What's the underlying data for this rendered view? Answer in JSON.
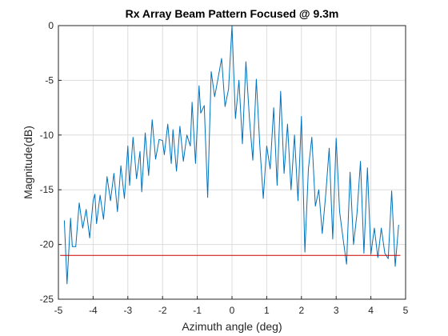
{
  "chart_data": {
    "type": "line",
    "title": "Rx Array Beam Pattern Focused @ 9.3m",
    "xlabel": "Azimuth angle (deg)",
    "ylabel": "Magnitude(dB)",
    "xlim": [
      -5,
      5
    ],
    "ylim": [
      -25,
      0
    ],
    "xticks": [
      -5,
      -4,
      -3,
      -2,
      -1,
      0,
      1,
      2,
      3,
      4,
      5
    ],
    "yticks": [
      0,
      -5,
      -10,
      -15,
      -20,
      -25
    ],
    "xtick_labels": [
      "-5",
      "-4",
      "-3",
      "-2",
      "-1",
      "0",
      "1",
      "2",
      "3",
      "4",
      "5"
    ],
    "ytick_labels": [
      "0",
      "-5",
      "-10",
      "-15",
      "-20",
      "-25"
    ],
    "grid": true,
    "legend": "none",
    "series": [
      {
        "color": "#0072BD",
        "x": [
          -4.83,
          -4.75,
          -4.65,
          -4.6,
          -4.5,
          -4.4,
          -4.3,
          -4.2,
          -4.1,
          -4.0,
          -3.95,
          -3.9,
          -3.8,
          -3.7,
          -3.6,
          -3.5,
          -3.4,
          -3.3,
          -3.2,
          -3.1,
          -3.0,
          -2.95,
          -2.85,
          -2.75,
          -2.65,
          -2.6,
          -2.5,
          -2.4,
          -2.3,
          -2.2,
          -2.1,
          -2.0,
          -1.95,
          -1.85,
          -1.75,
          -1.7,
          -1.6,
          -1.5,
          -1.4,
          -1.3,
          -1.2,
          -1.15,
          -1.05,
          -0.95,
          -0.9,
          -0.8,
          -0.7,
          -0.6,
          -0.5,
          -0.4,
          -0.3,
          -0.2,
          -0.1,
          0.0,
          0.1,
          0.2,
          0.3,
          0.4,
          0.5,
          0.6,
          0.7,
          0.8,
          0.9,
          1.0,
          1.1,
          1.2,
          1.3,
          1.4,
          1.5,
          1.6,
          1.7,
          1.8,
          1.9,
          2.0,
          2.1,
          2.2,
          2.3,
          2.4,
          2.5,
          2.6,
          2.7,
          2.8,
          2.9,
          3.0,
          3.1,
          3.2,
          3.3,
          3.4,
          3.5,
          3.6,
          3.7,
          3.8,
          3.9,
          4.0,
          4.1,
          4.2,
          4.3,
          4.4,
          4.5,
          4.6,
          4.7,
          4.8
        ],
        "values": [
          -17.8,
          -23.6,
          -17.6,
          -20.2,
          -20.2,
          -16.2,
          -18.5,
          -16.8,
          -19.4,
          -16.0,
          -15.4,
          -18.1,
          -15.5,
          -17.7,
          -13.8,
          -16.0,
          -13.5,
          -17.0,
          -12.8,
          -15.8,
          -11.0,
          -14.6,
          -10.2,
          -14.0,
          -11.5,
          -15.2,
          -9.8,
          -13.7,
          -8.6,
          -12.2,
          -10.4,
          -10.5,
          -11.8,
          -9.0,
          -12.6,
          -9.5,
          -13.3,
          -9.2,
          -12.4,
          -10.0,
          -11.0,
          -7.0,
          -12.6,
          -5.5,
          -8.0,
          -7.3,
          -15.7,
          -4.2,
          -6.5,
          -4.8,
          -3.0,
          -7.4,
          -5.8,
          0.0,
          -8.5,
          -5.0,
          -10.8,
          -3.3,
          -8.4,
          -12.3,
          -4.9,
          -10.9,
          -15.8,
          -11.0,
          -13.1,
          -7.5,
          -14.6,
          -6.0,
          -13.5,
          -9.0,
          -15.0,
          -10.0,
          -16.0,
          -8.3,
          -20.7,
          -13.1,
          -10.2,
          -16.5,
          -15.0,
          -19.0,
          -15.4,
          -11.2,
          -19.5,
          -10.3,
          -17.0,
          -19.5,
          -21.8,
          -13.4,
          -20.0,
          -17.2,
          -12.4,
          -20.8,
          -13.0,
          -20.9,
          -18.5,
          -21.2,
          -18.5,
          -20.8,
          -21.3,
          -15.1,
          -22.0,
          -18.2
        ]
      },
      {
        "color": "#CC0000",
        "x": [
          -4.95,
          4.85
        ],
        "values": [
          -21.0,
          -21.0
        ]
      }
    ]
  }
}
